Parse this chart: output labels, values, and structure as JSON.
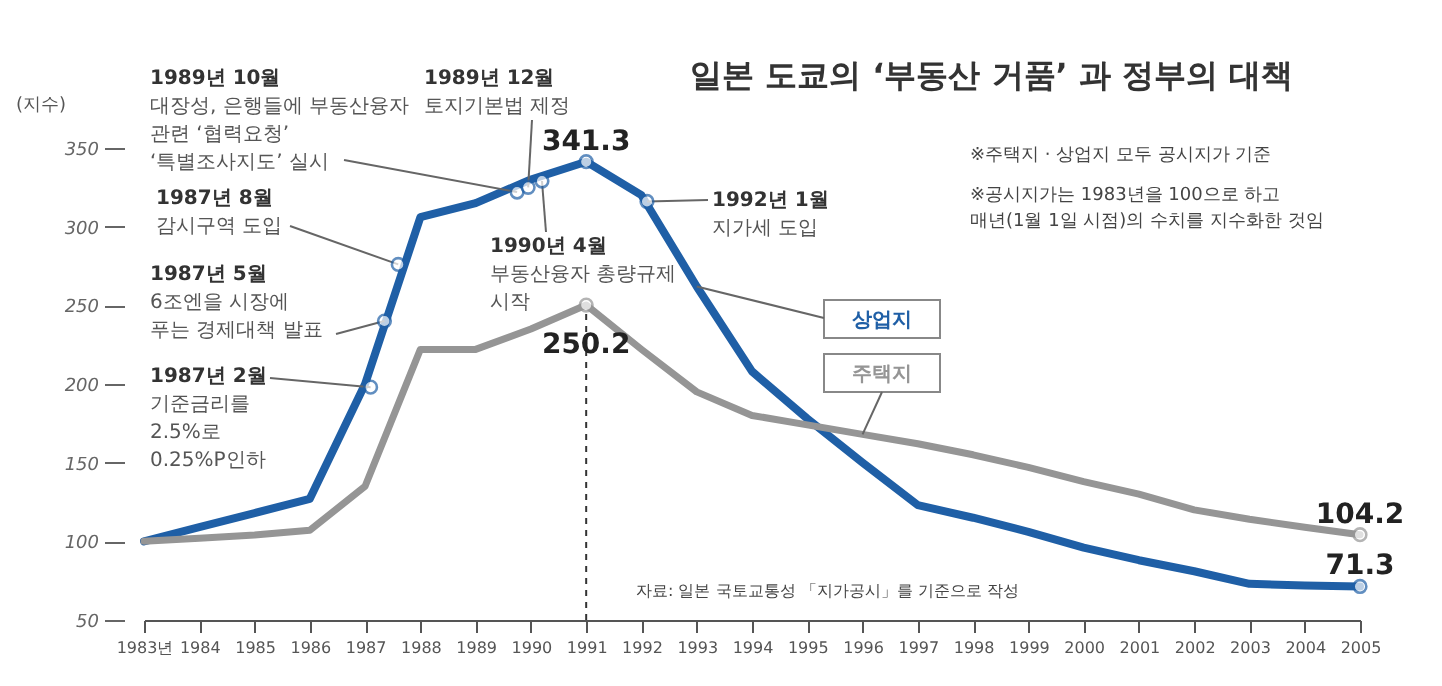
{
  "chart_data": {
    "type": "line",
    "title": "일본 도쿄의 ‘부동산 거품’ 과 정부의 대책",
    "ylabel": "(지수)",
    "x": [
      1983,
      1984,
      1985,
      1986,
      1987,
      1988,
      1989,
      1990,
      1991,
      1992,
      1993,
      1994,
      1995,
      1996,
      1997,
      1998,
      1999,
      2000,
      2001,
      2002,
      2003,
      2004,
      2005
    ],
    "series": [
      {
        "name": "상업지",
        "color": "#1f5fa6",
        "values": [
          100,
          109,
          118,
          127,
          200,
          306,
          315,
          330,
          341.3,
          320,
          262,
          208,
          178,
          150,
          123,
          115,
          106,
          96,
          88,
          81,
          73,
          72,
          71.3
        ],
        "value_labels": [
          null,
          null,
          null,
          null,
          null,
          null,
          null,
          null,
          "341.3",
          null,
          null,
          null,
          null,
          null,
          null,
          null,
          null,
          null,
          null,
          null,
          null,
          null,
          "71.3"
        ]
      },
      {
        "name": "주택지",
        "color": "#959595",
        "values": [
          100,
          102,
          104,
          107,
          135,
          222,
          222,
          235,
          250.2,
          222,
          195,
          180,
          174,
          168,
          162,
          155,
          147,
          138,
          130,
          120,
          114,
          109,
          104.2
        ],
        "value_labels": [
          null,
          null,
          null,
          null,
          null,
          null,
          null,
          null,
          "250.2",
          null,
          null,
          null,
          null,
          null,
          null,
          null,
          null,
          null,
          null,
          null,
          null,
          null,
          "104.2"
        ]
      }
    ],
    "xlim": [
      1983,
      2005
    ],
    "xticks": [
      {
        "value": 1983,
        "label": "1983년"
      },
      1984,
      1985,
      1986,
      1987,
      1988,
      1989,
      1990,
      1991,
      1992,
      1993,
      1994,
      1995,
      1996,
      1997,
      1998,
      1999,
      2000,
      2001,
      2002,
      2003,
      2004,
      2005
    ],
    "ylim": [
      50,
      350
    ],
    "yticks": [
      50,
      100,
      150,
      200,
      250,
      300,
      350
    ],
    "grid": false,
    "ref_lines": [
      {
        "axis": "x",
        "value": 1991,
        "color": "#333333",
        "line_style": "dashed"
      }
    ],
    "annotations": [
      "※주택지 · 상업지 모두 공시지가 기준",
      "※공시지가는 1983년을 100으로 하고\n  매년(1월 1일 시점)의 수치를 지수화한 것임",
      "자료: 일본 국토교통성 「지가공시」를 기준으로 작성",
      {
        "text": "1987년 2월\n기준금리를\n2.5%로\n0.25%P인하",
        "x": 1987.1,
        "y": 198
      },
      {
        "text": "1987년 5월\n6조엔을 시장에\n푸는 경제대책 발표",
        "x": 1987.35,
        "y": 240
      },
      {
        "text": "1987년 8월\n감시구역 도입",
        "x": 1987.6,
        "y": 276
      },
      {
        "text": "1989년 10월\n대장성, 은행들에 부동산융자\n관련 ‘협력요청’\n‘특별조사지도’ 실시",
        "x": 1989.75,
        "y": 322
      },
      {
        "text": "1989년 12월\n토지기본법 제정",
        "x": 1989.95,
        "y": 325
      },
      {
        "text": "1990년 4월\n부동산융자 총량규제\n시작",
        "x": 1990.2,
        "y": 329
      },
      {
        "text": "1992년 1월\n지가세 도입",
        "x": 1992.1,
        "y": 316
      }
    ]
  }
}
